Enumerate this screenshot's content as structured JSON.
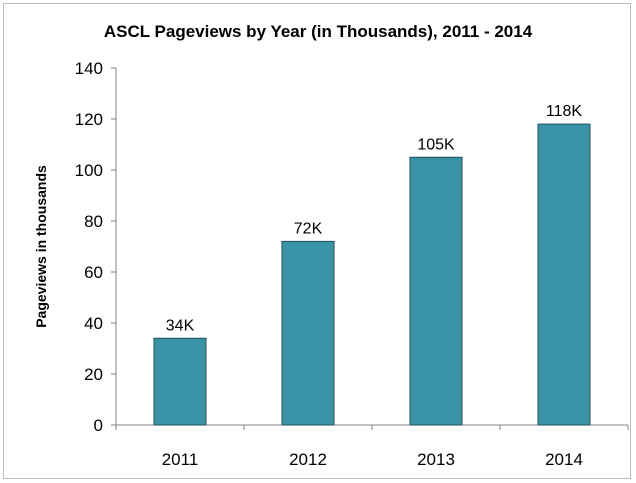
{
  "chart_data": {
    "type": "bar",
    "title": "ASCL Pageviews by Year (in Thousands), 2011 - 2014",
    "xlabel": "",
    "ylabel": "Pageviews in thousands",
    "categories": [
      "2011",
      "2012",
      "2013",
      "2014"
    ],
    "values": [
      34,
      72,
      105,
      118
    ],
    "data_labels": [
      "34K",
      "72K",
      "105K",
      "118K"
    ],
    "ylim": [
      0,
      140
    ],
    "y_ticks": [
      0,
      20,
      40,
      60,
      80,
      100,
      120,
      140
    ],
    "grid": false,
    "legend": "none",
    "colors": {
      "bar_fill": "#3a93a6",
      "bar_stroke": "#1f4f5a",
      "axis": "#808080"
    }
  }
}
